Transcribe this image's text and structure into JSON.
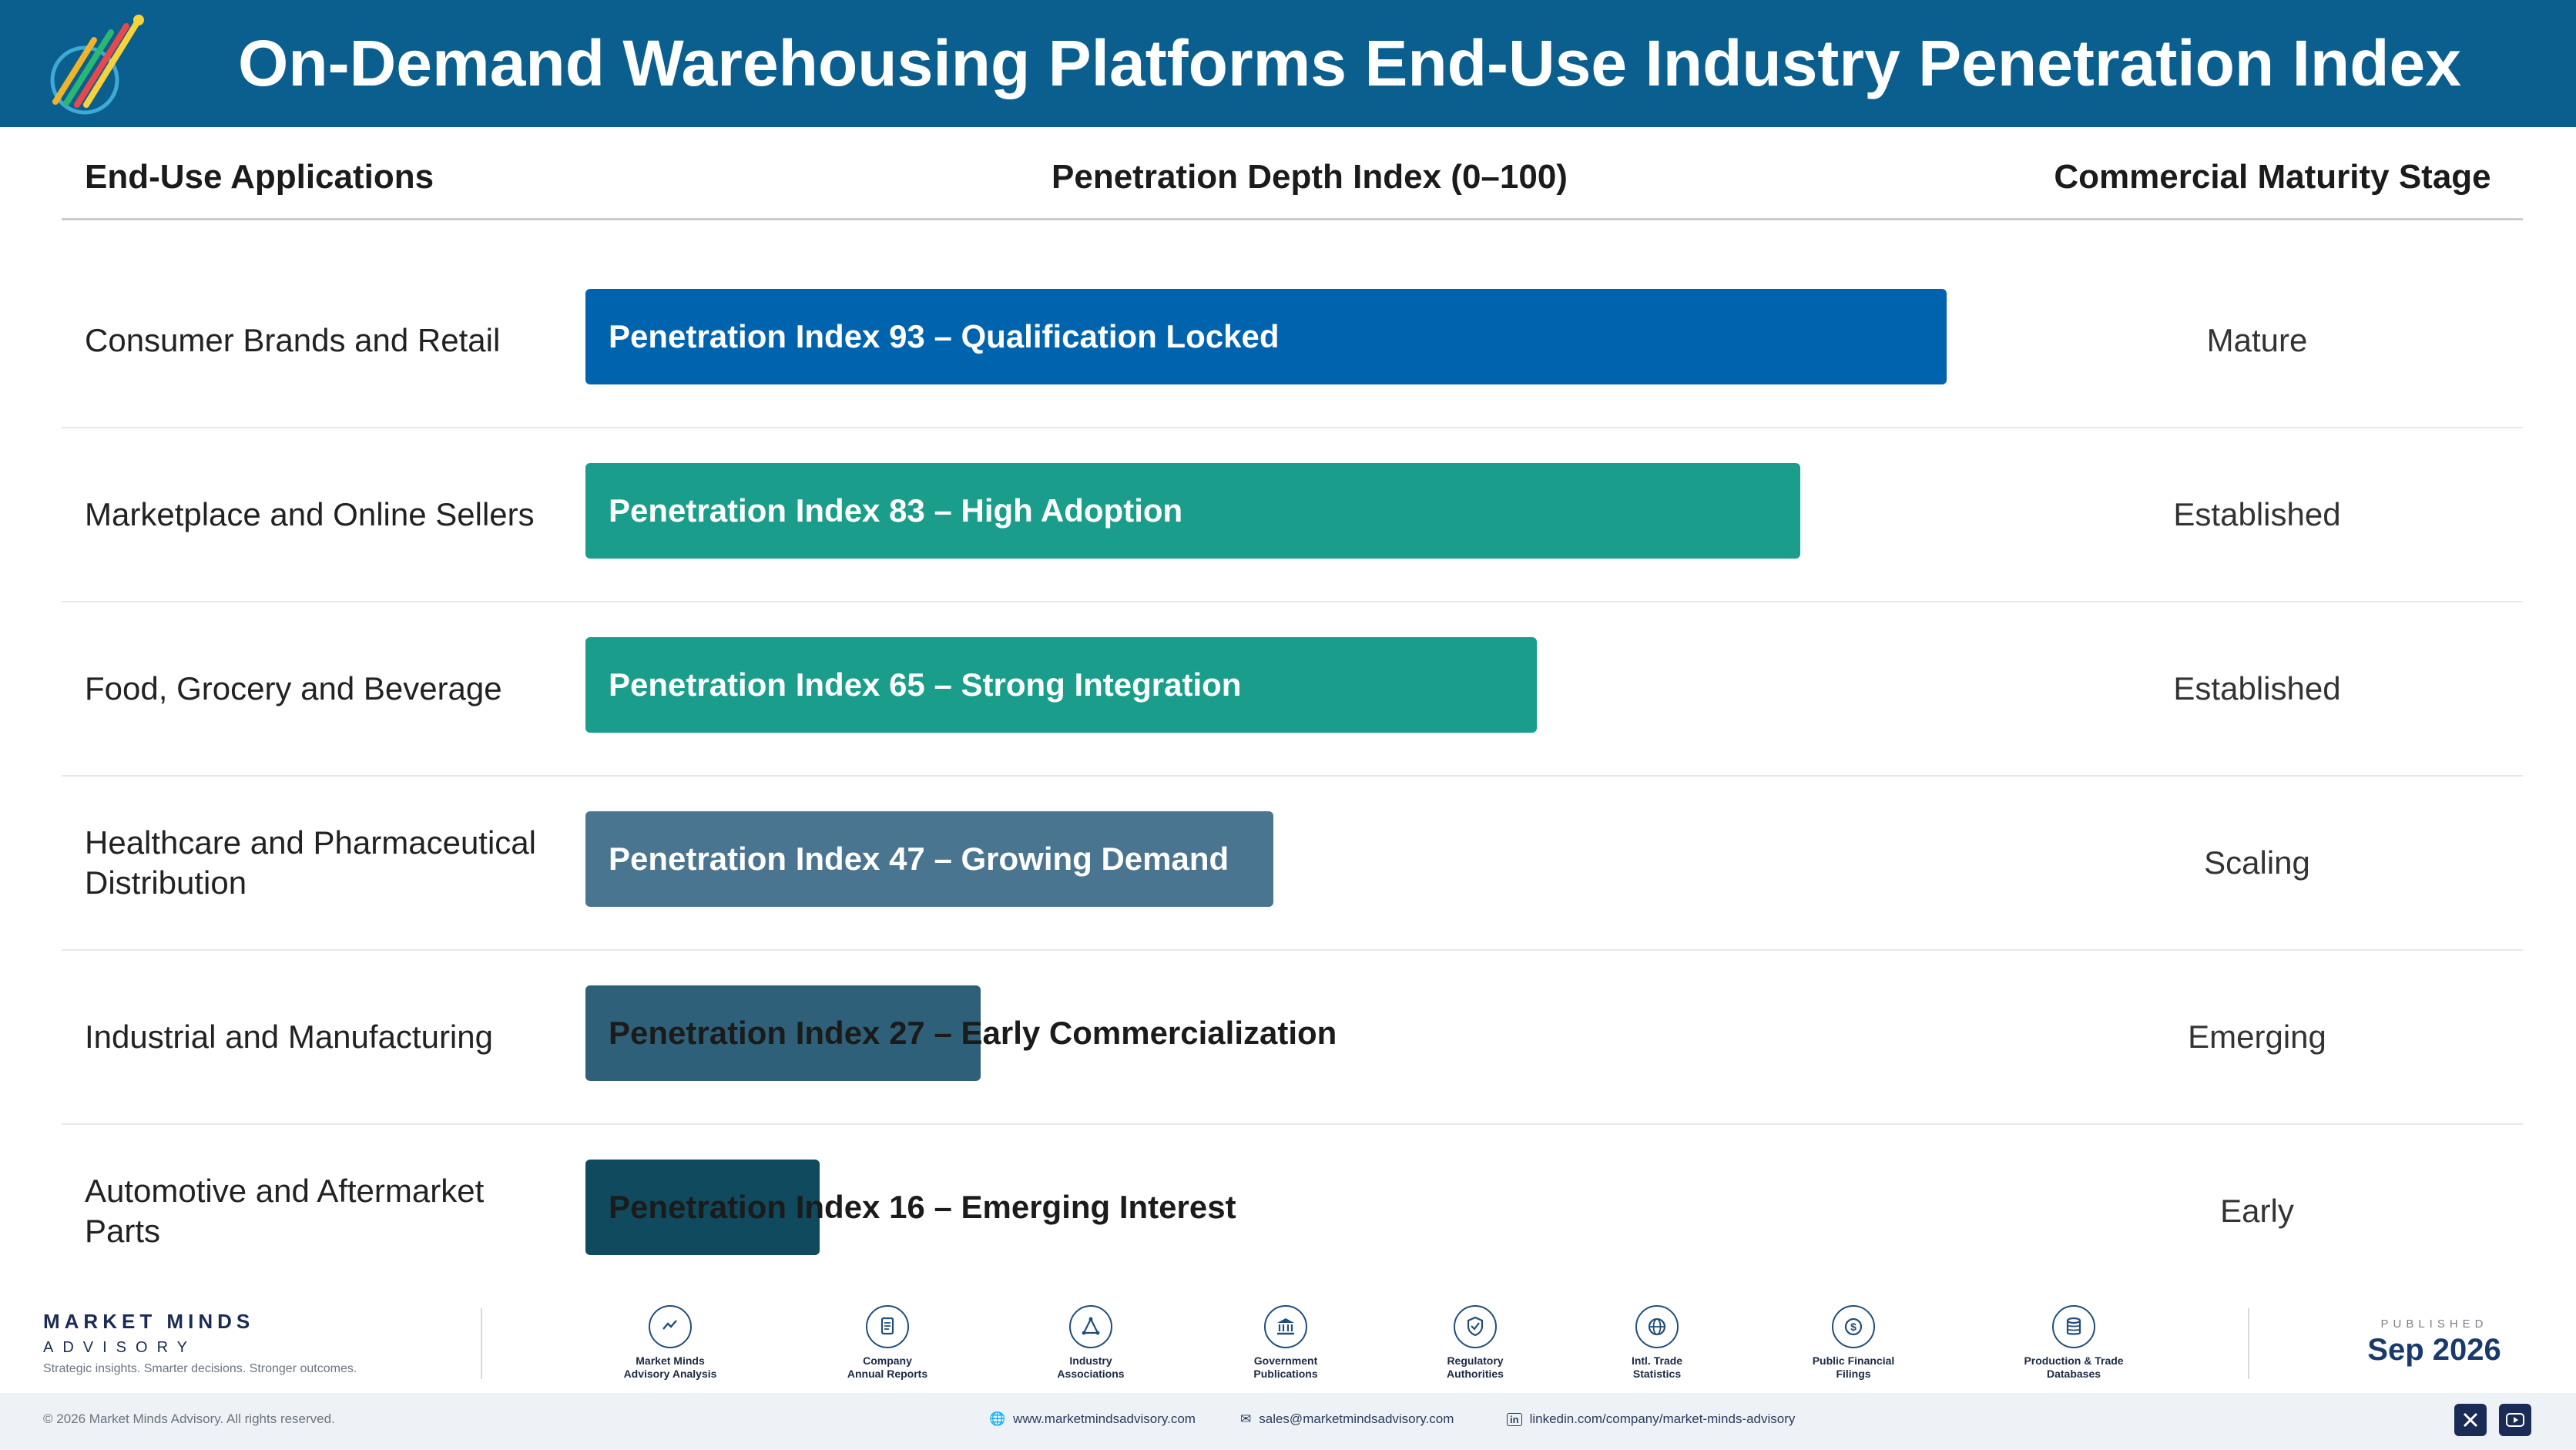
{
  "title": "On-Demand Warehousing Platforms End-Use Industry Penetration Index",
  "columns": {
    "applications": "End-Use Applications",
    "index": "Penetration Depth Index (0–100)",
    "stage": "Commercial Maturity Stage"
  },
  "chart_data": {
    "type": "bar",
    "orientation": "horizontal",
    "title": "On-Demand Warehousing Platforms End-Use Industry Penetration Index",
    "xlabel": "Penetration Depth Index (0–100)",
    "xlim": [
      0,
      100
    ],
    "categories": [
      "Consumer Brands and Retail",
      "Marketplace and Online Sellers",
      "Food, Grocery and Beverage",
      "Healthcare and Pharmaceutical Distribution",
      "Industrial and Manufacturing",
      "Automotive and Aftermarket Parts"
    ],
    "values": [
      93,
      83,
      65,
      47,
      27,
      16
    ],
    "bar_labels": [
      "Penetration Index 93 – Qualification Locked",
      "Penetration Index 83 – High Adoption",
      "Penetration Index 65 – Strong Integration",
      "Penetration Index 47 – Growing Demand",
      "Penetration Index 27 – Early Commercialization",
      "Penetration Index 16 – Emerging Interest"
    ],
    "stages": [
      "Mature",
      "Established",
      "Established",
      "Scaling",
      "Emerging",
      "Early"
    ],
    "colors": [
      "#0063ae",
      "#1a9e8b",
      "#1a9e8b",
      "#4a7590",
      "#2f6079",
      "#0f4a5f"
    ]
  },
  "footer": {
    "brand": "MARKET MINDS",
    "brand_sub": "ADVISORY",
    "tagline": "Strategic insights. Smarter decisions. Stronger outcomes.",
    "sources": [
      {
        "icon": "chart-line-icon",
        "l1": "Market Minds",
        "l2": "Advisory Analysis"
      },
      {
        "icon": "document-icon",
        "l1": "Company",
        "l2": "Annual Reports"
      },
      {
        "icon": "network-icon",
        "l1": "Industry",
        "l2": "Associations"
      },
      {
        "icon": "government-building-icon",
        "l1": "Government",
        "l2": "Publications"
      },
      {
        "icon": "shield-check-icon",
        "l1": "Regulatory",
        "l2": "Authorities"
      },
      {
        "icon": "globe-icon",
        "l1": "Intl. Trade",
        "l2": "Statistics"
      },
      {
        "icon": "dollar-coin-icon",
        "l1": "Public Financial",
        "l2": "Filings"
      },
      {
        "icon": "database-icon",
        "l1": "Production & Trade",
        "l2": "Databases"
      }
    ],
    "published_label": "PUBLISHED",
    "published_date": "Sep 2026",
    "copyright": "© 2026 Market Minds Advisory. All rights reserved.",
    "website": "www.marketmindsadvisory.com",
    "email": "sales@marketmindsadvisory.com",
    "linkedin": "linkedin.com/company/market-minds-advisory"
  }
}
